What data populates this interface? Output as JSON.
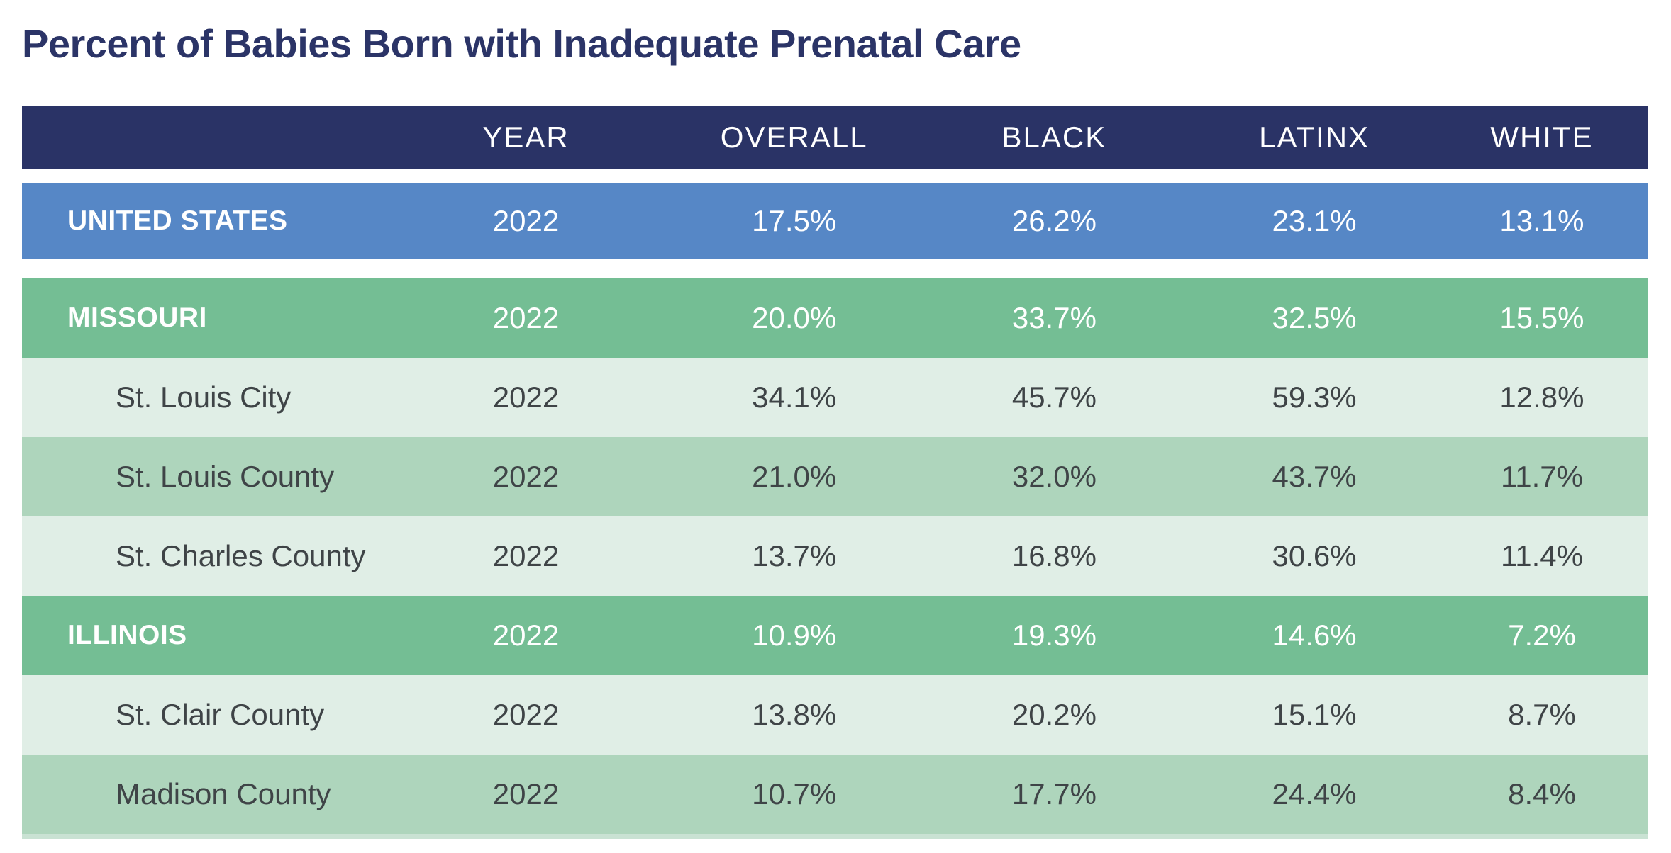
{
  "title": "Percent of Babies Born with Inadequate Prenatal Care",
  "colors": {
    "headerBg": "#2A3366",
    "usRowBg": "#5687C6",
    "stateRowBg": "#74BE94",
    "lightRowBg": "#E0EEE6",
    "midRowBg": "#AED5BC",
    "titleText": "#2B3467",
    "darkText": "#3F4447"
  },
  "table": {
    "columns": [
      "",
      "YEAR",
      "OVERALL",
      "BLACK",
      "LATINX",
      "WHITE"
    ],
    "rows": [
      {
        "label": "UNITED STATES",
        "level": "country",
        "year": "2022",
        "overall": "17.5%",
        "black": "26.2%",
        "latinx": "23.1%",
        "white": "13.1%"
      },
      {
        "label": "MISSOURI",
        "level": "state",
        "year": "2022",
        "overall": "20.0%",
        "black": "33.7%",
        "latinx": "32.5%",
        "white": "15.5%"
      },
      {
        "label": "St. Louis City",
        "level": "county",
        "year": "2022",
        "overall": "34.1%",
        "black": "45.7%",
        "latinx": "59.3%",
        "white": "12.8%"
      },
      {
        "label": "St. Louis County",
        "level": "county",
        "year": "2022",
        "overall": "21.0%",
        "black": "32.0%",
        "latinx": "43.7%",
        "white": "11.7%"
      },
      {
        "label": "St. Charles County",
        "level": "county",
        "year": "2022",
        "overall": "13.7%",
        "black": "16.8%",
        "latinx": "30.6%",
        "white": "11.4%"
      },
      {
        "label": "ILLINOIS",
        "level": "state",
        "year": "2022",
        "overall": "10.9%",
        "black": "19.3%",
        "latinx": "14.6%",
        "white": "7.2%"
      },
      {
        "label": "St. Clair County",
        "level": "county",
        "year": "2022",
        "overall": "13.8%",
        "black": "20.2%",
        "latinx": "15.1%",
        "white": "8.7%"
      },
      {
        "label": "Madison County",
        "level": "county",
        "year": "2022",
        "overall": "10.7%",
        "black": "17.7%",
        "latinx": "24.4%",
        "white": "8.4%"
      }
    ]
  },
  "chart_data": {
    "type": "table",
    "title": "Percent of Babies Born with Inadequate Prenatal Care",
    "units": "percent",
    "columns": [
      "YEAR",
      "OVERALL",
      "BLACK",
      "LATINX",
      "WHITE"
    ],
    "rows": [
      {
        "label": "UNITED STATES",
        "year": 2022,
        "overall": 17.5,
        "black": 26.2,
        "latinx": 23.1,
        "white": 13.1
      },
      {
        "label": "MISSOURI",
        "year": 2022,
        "overall": 20.0,
        "black": 33.7,
        "latinx": 32.5,
        "white": 15.5
      },
      {
        "label": "St. Louis City",
        "year": 2022,
        "overall": 34.1,
        "black": 45.7,
        "latinx": 59.3,
        "white": 12.8
      },
      {
        "label": "St. Louis County",
        "year": 2022,
        "overall": 21.0,
        "black": 32.0,
        "latinx": 43.7,
        "white": 11.7
      },
      {
        "label": "St. Charles County",
        "year": 2022,
        "overall": 13.7,
        "black": 16.8,
        "latinx": 30.6,
        "white": 11.4
      },
      {
        "label": "ILLINOIS",
        "year": 2022,
        "overall": 10.9,
        "black": 19.3,
        "latinx": 14.6,
        "white": 7.2
      },
      {
        "label": "St. Clair County",
        "year": 2022,
        "overall": 13.8,
        "black": 20.2,
        "latinx": 15.1,
        "white": 8.7
      },
      {
        "label": "Madison County",
        "year": 2022,
        "overall": 10.7,
        "black": 17.7,
        "latinx": 24.4,
        "white": 8.4
      }
    ]
  }
}
